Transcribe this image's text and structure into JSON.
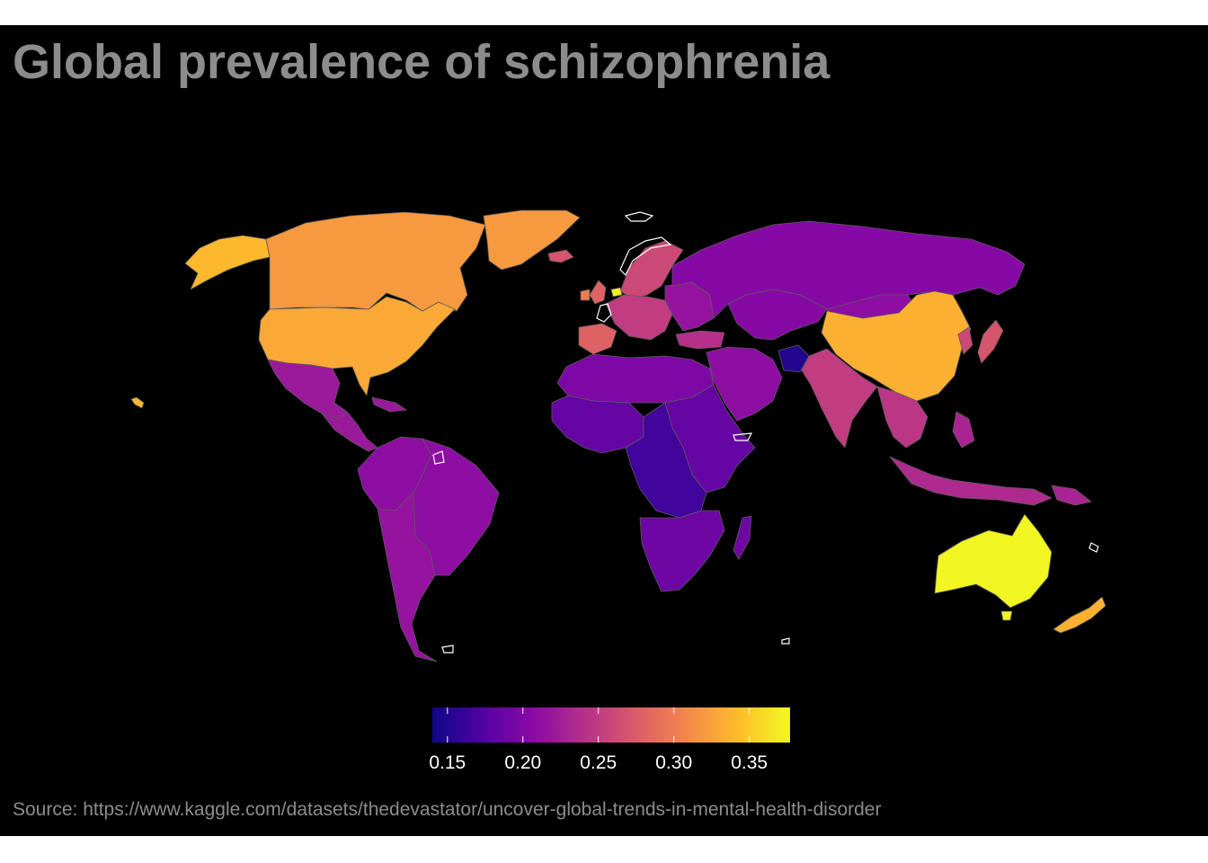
{
  "title": "Global prevalence of schizophrenia",
  "source": "Source: https://www.kaggle.com/datasets/thedevastator/uncover-global-trends-in-mental-health-disorder",
  "legend": {
    "min": 0.14,
    "max": 0.377,
    "ticks": [
      {
        "value": 0.15,
        "label": "0.15"
      },
      {
        "value": 0.2,
        "label": "0.20"
      },
      {
        "value": 0.25,
        "label": "0.25"
      },
      {
        "value": 0.3,
        "label": "0.30"
      },
      {
        "value": 0.35,
        "label": "0.35"
      }
    ],
    "colors": [
      "#0d0887",
      "#5302a3",
      "#8b0aa5",
      "#b83289",
      "#db5c68",
      "#f48849",
      "#febd2a",
      "#f0f921"
    ]
  },
  "map_data": {
    "type": "choropleth",
    "missing_color": "#000000",
    "regions": [
      {
        "name": "United States",
        "value": 0.33
      },
      {
        "name": "Canada",
        "value": 0.32
      },
      {
        "name": "Greenland",
        "value": 0.32
      },
      {
        "name": "Alaska",
        "value": 0.34
      },
      {
        "name": "Mexico",
        "value": 0.22
      },
      {
        "name": "Central America",
        "value": 0.22
      },
      {
        "name": "Brazil",
        "value": 0.21
      },
      {
        "name": "Andean South America",
        "value": 0.21
      },
      {
        "name": "Southern Cone",
        "value": 0.215
      },
      {
        "name": "Iceland",
        "value": 0.27
      },
      {
        "name": "Scandinavia",
        "value": 0.26
      },
      {
        "name": "United Kingdom",
        "value": 0.28
      },
      {
        "name": "Ireland",
        "value": 0.3
      },
      {
        "name": "Netherlands",
        "value": 0.37
      },
      {
        "name": "Iberia",
        "value": 0.28
      },
      {
        "name": "Western Europe",
        "value": 0.25
      },
      {
        "name": "Eastern Europe",
        "value": 0.215
      },
      {
        "name": "Russia",
        "value": 0.205
      },
      {
        "name": "Turkey",
        "value": 0.24
      },
      {
        "name": "Central Asia",
        "value": 0.205
      },
      {
        "name": "Middle East",
        "value": 0.21
      },
      {
        "name": "Afghanistan",
        "value": 0.15
      },
      {
        "name": "North Africa",
        "value": 0.2
      },
      {
        "name": "West Africa",
        "value": 0.185
      },
      {
        "name": "Central Africa",
        "value": 0.165
      },
      {
        "name": "East Africa",
        "value": 0.185
      },
      {
        "name": "Southern Africa",
        "value": 0.19
      },
      {
        "name": "Madagascar",
        "value": 0.19
      },
      {
        "name": "India",
        "value": 0.25
      },
      {
        "name": "China",
        "value": 0.335
      },
      {
        "name": "Mongolia",
        "value": 0.21
      },
      {
        "name": "Southeast Asia",
        "value": 0.245
      },
      {
        "name": "Indonesia",
        "value": 0.235
      },
      {
        "name": "Philippines",
        "value": 0.23
      },
      {
        "name": "Japan",
        "value": 0.27
      },
      {
        "name": "Korea",
        "value": 0.26
      },
      {
        "name": "Australia",
        "value": 0.375
      },
      {
        "name": "New Zealand",
        "value": 0.335
      },
      {
        "name": "Papua New Guinea",
        "value": 0.23
      },
      {
        "name": "Hawaii",
        "value": 0.34
      }
    ]
  }
}
